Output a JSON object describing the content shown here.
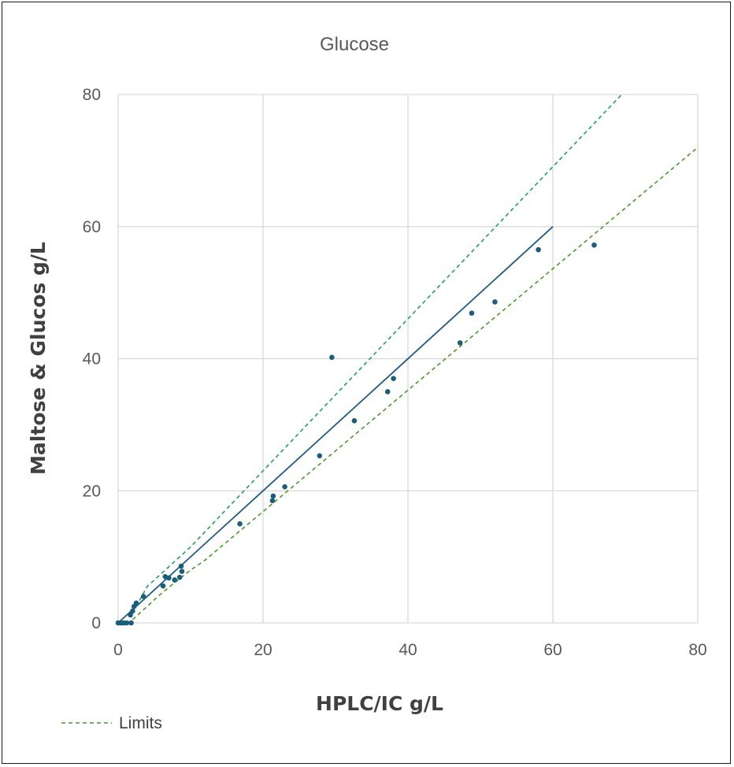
{
  "chart_data": {
    "type": "scatter",
    "title": "Glucose",
    "xlabel": "HPLC/IC g/L",
    "ylabel": "Maltose & Glucos  g/L",
    "xlim": [
      0,
      80
    ],
    "ylim": [
      0,
      80
    ],
    "x_ticks": [
      "0",
      "20",
      "40",
      "60",
      "80"
    ],
    "y_ticks": [
      "0",
      "20",
      "40",
      "60",
      "80"
    ],
    "grid": true,
    "legend_placement": "bottom-left",
    "colors": {
      "points": "#1b5e7a",
      "identity_line": "#1f5b82",
      "upper_limit": "#1fa15a",
      "lower_limit": "#4a9a2a",
      "grid": "#d9d9d9"
    },
    "series": [
      {
        "kind": "points",
        "x": [
          0,
          0.3,
          0.5,
          0.8,
          1.2,
          1.8,
          1.7,
          2.0,
          2.2,
          2.5,
          3.5,
          6.2,
          6.5,
          7.0,
          7.8,
          8.5,
          8.8,
          8.7,
          16.8,
          21.3,
          21.4,
          23.0,
          27.8,
          29.5,
          32.6,
          37.2,
          38.0,
          47.2,
          48.8,
          52.0,
          58.0,
          65.7
        ],
        "y": [
          0,
          0,
          0,
          0,
          0,
          0,
          1.2,
          1.8,
          2.5,
          3.0,
          4.0,
          5.6,
          7.0,
          6.8,
          6.5,
          6.9,
          7.8,
          8.6,
          15.0,
          18.5,
          19.2,
          20.6,
          25.3,
          40.2,
          30.6,
          35.0,
          37.0,
          42.4,
          46.9,
          48.6,
          56.5,
          57.2
        ]
      },
      {
        "kind": "identity-line",
        "x": [
          0,
          60
        ],
        "y": [
          0,
          60
        ]
      },
      {
        "name": "Limits",
        "kind": "upper-limit",
        "x": [
          2,
          4,
          6,
          8,
          10,
          69.5
        ],
        "y": [
          1.5,
          5.5,
          7.5,
          9.5,
          11.5,
          80
        ]
      },
      {
        "name": "Limits",
        "kind": "lower-limit",
        "x": [
          2,
          6,
          10,
          12,
          80
        ],
        "y": [
          0.5,
          4.5,
          8.0,
          9.5,
          72.0
        ]
      }
    ],
    "legend": [
      {
        "label": "Limits",
        "style": "dashed",
        "color": "#4a9a2a"
      }
    ]
  }
}
